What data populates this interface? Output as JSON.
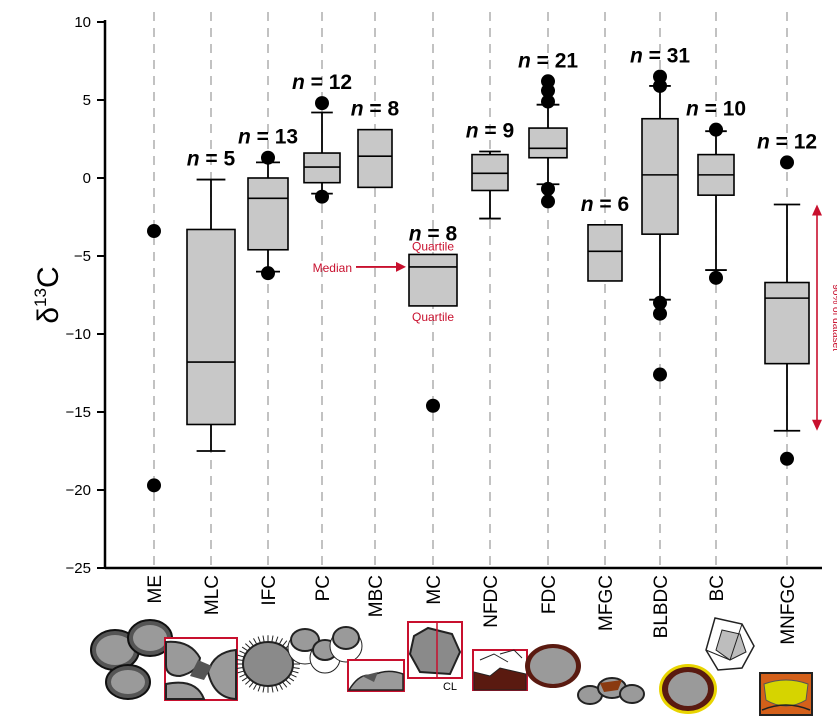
{
  "chart_data": {
    "type": "box",
    "ylabel_base": "δ",
    "ylabel_sup": "13",
    "ylabel_tail": "C",
    "ylim": [
      -25,
      10
    ],
    "yticks": [
      10,
      5,
      0,
      -5,
      -10,
      -15,
      -20,
      -25
    ],
    "grid": "vertical dashed lines at each category",
    "categories": [
      "ME",
      "MLC",
      "IFC",
      "PC",
      "MBC",
      "MC",
      "NFDC",
      "FDC",
      "MFGC",
      "BLBDC",
      "BC",
      "MNFGC"
    ],
    "series": [
      {
        "category": "ME",
        "n": "",
        "box": null,
        "outliers": [
          -3.4,
          -19.7
        ]
      },
      {
        "category": "MLC",
        "n": "n = 5",
        "box": {
          "whisker_low": -17.5,
          "q1": -15.8,
          "median": -11.8,
          "q3": -3.3,
          "whisker_high": -0.1
        },
        "outliers": []
      },
      {
        "category": "IFC",
        "n": "n = 13",
        "box": {
          "whisker_low": -6.0,
          "q1": -4.6,
          "median": -1.3,
          "q3": 0.0,
          "whisker_high": 1.0
        },
        "outliers": [
          1.3,
          -6.1
        ]
      },
      {
        "category": "PC",
        "n": "n = 12",
        "box": {
          "whisker_low": -1.0,
          "q1": -0.3,
          "median": 0.7,
          "q3": 1.6,
          "whisker_high": 4.2
        },
        "outliers": [
          4.8,
          -1.2
        ]
      },
      {
        "category": "MBC",
        "n": "n = 8",
        "box": {
          "whisker_low": null,
          "q1": -0.6,
          "median": 1.4,
          "q3": 3.1,
          "whisker_high": null
        },
        "outliers": []
      },
      {
        "category": "MC",
        "n": "n = 8",
        "box": {
          "whisker_low": null,
          "q1": -8.2,
          "median": -5.7,
          "q3": -4.9,
          "whisker_high": null
        },
        "outliers": [
          -14.6
        ]
      },
      {
        "category": "NFDC",
        "n": "n = 9",
        "box": {
          "whisker_low": -2.6,
          "q1": -0.8,
          "median": 0.3,
          "q3": 1.5,
          "whisker_high": 1.7
        },
        "outliers": []
      },
      {
        "category": "FDC",
        "n": "n = 21",
        "box": {
          "whisker_low": -0.4,
          "q1": 1.3,
          "median": 1.9,
          "q3": 3.2,
          "whisker_high": 4.7
        },
        "outliers": [
          6.2,
          5.6,
          4.9,
          -0.7,
          -1.5
        ]
      },
      {
        "category": "MFGC",
        "n": "n = 6",
        "box": {
          "whisker_low": null,
          "q1": -6.6,
          "median": -4.7,
          "q3": -3.0,
          "whisker_high": null
        },
        "outliers": []
      },
      {
        "category": "BLBDC",
        "n": "n = 31",
        "box": {
          "whisker_low": -7.8,
          "q1": -3.6,
          "median": 0.2,
          "q3": 3.8,
          "whisker_high": 5.9
        },
        "outliers": [
          6.5,
          5.9,
          -8.0,
          -8.7,
          -12.6
        ]
      },
      {
        "category": "BC",
        "n": "n = 10",
        "box": {
          "whisker_low": -5.9,
          "q1": -1.1,
          "median": 0.2,
          "q3": 1.5,
          "whisker_high": 3.0
        },
        "outliers": [
          3.1,
          -6.4
        ]
      },
      {
        "category": "MNFGC",
        "n": "n = 12",
        "box": {
          "whisker_low": -16.2,
          "q1": -11.9,
          "median": -7.7,
          "q3": -6.7,
          "whisker_high": -1.7
        },
        "outliers": [
          1.0,
          -18.0
        ]
      }
    ],
    "annotations": {
      "median": "Median",
      "quartile_top": "Quartile",
      "quartile_bottom": "Quartile",
      "range": "90% of dataset",
      "cl_label": "CL"
    },
    "colors": {
      "box_fill": "#c8c8c8",
      "annotation": "#c8102e",
      "outline": "#000000"
    }
  }
}
